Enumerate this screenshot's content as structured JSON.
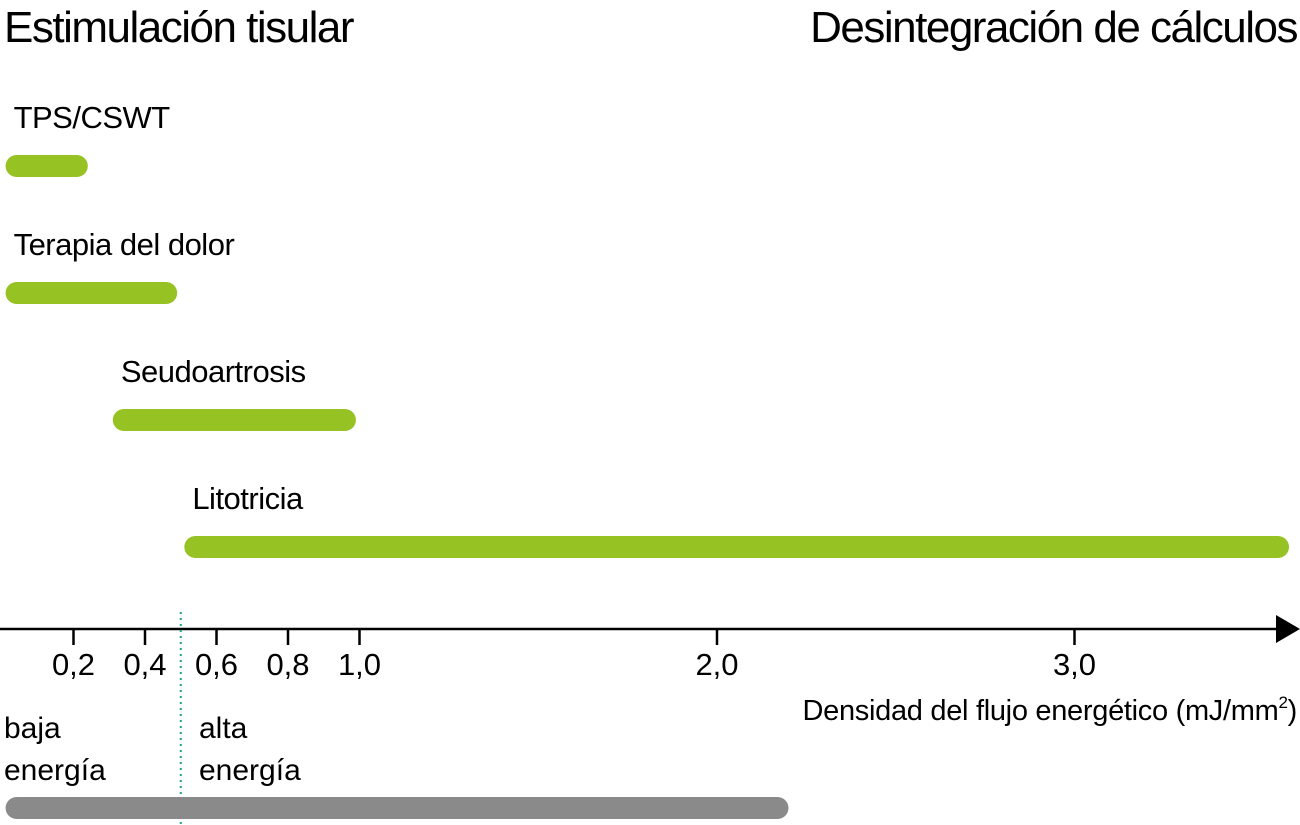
{
  "chart_data": {
    "type": "bar",
    "title_left": "Estimulación tisular",
    "title_right": "Desintegración de cálculos",
    "xlabel": "Densidad del flujo energético (mJ/mm",
    "xlabel_superscript": "2",
    "xlabel_suffix": ")",
    "xlim": [
      0,
      3.6
    ],
    "ticks": [
      0.2,
      0.4,
      0.6,
      0.8,
      1.0,
      2.0,
      3.0
    ],
    "tick_labels": [
      "0,2",
      "0,4",
      "0,6",
      "0,8",
      "1,0",
      "2,0",
      "3,0"
    ],
    "bar_color": "#97c223",
    "axis_color": "#000000",
    "series": [
      {
        "name": "TPS/CSWT",
        "start": 0.01,
        "end": 0.24
      },
      {
        "name": "Terapia del dolor",
        "start": 0.01,
        "end": 0.49
      },
      {
        "name": "Seudoartrosis",
        "start": 0.31,
        "end": 0.99
      },
      {
        "name": "Litotricia",
        "start": 0.51,
        "end": 3.6
      }
    ],
    "threshold": {
      "value": 0.5,
      "color": "#1aa884"
    },
    "energy_zones": {
      "low_label_line1": "baja",
      "low_label_line2": "energía",
      "high_label_line1": "alta",
      "high_label_line2": "energía",
      "range_bar": {
        "start": 0.01,
        "end": 2.2,
        "color": "#8a8a8a"
      }
    }
  }
}
